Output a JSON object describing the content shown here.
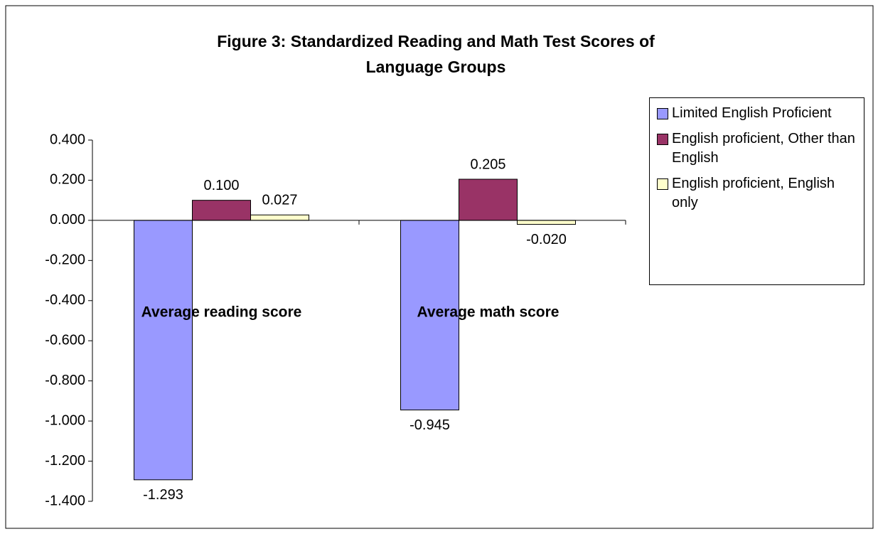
{
  "chart_data": {
    "type": "bar",
    "title": "Figure 3: Standardized Reading and Math Test Scores of Language Groups",
    "categories": [
      "Average reading score",
      "Average math score"
    ],
    "series": [
      {
        "name": "Limited English Proficient",
        "color": "#9999ff",
        "values": [
          -1.293,
          -0.945
        ],
        "value_labels": [
          "-1.293",
          "-0.945"
        ]
      },
      {
        "name": "English proficient, Other than English",
        "color": "#993366",
        "values": [
          0.1,
          0.205
        ],
        "value_labels": [
          "0.100",
          "0.205"
        ]
      },
      {
        "name": "English proficient, English only",
        "color": "#ffffcc",
        "values": [
          0.027,
          -0.02
        ],
        "value_labels": [
          "0.027",
          "-0.020"
        ]
      }
    ],
    "ylim": [
      -1.4,
      0.4
    ],
    "yticks": [
      {
        "value": -1.4,
        "label": "-1.400"
      },
      {
        "value": -1.2,
        "label": "-1.200"
      },
      {
        "value": -1.0,
        "label": "-1.000"
      },
      {
        "value": -0.8,
        "label": "-0.800"
      },
      {
        "value": -0.6,
        "label": "-0.600"
      },
      {
        "value": -0.4,
        "label": "-0.400"
      },
      {
        "value": -0.2,
        "label": "-0.200"
      },
      {
        "value": 0,
        "label": "0.000"
      },
      {
        "value": 0.2,
        "label": "0.200"
      },
      {
        "value": 0.4,
        "label": "0.400"
      }
    ],
    "grid": false,
    "legend": "right"
  }
}
